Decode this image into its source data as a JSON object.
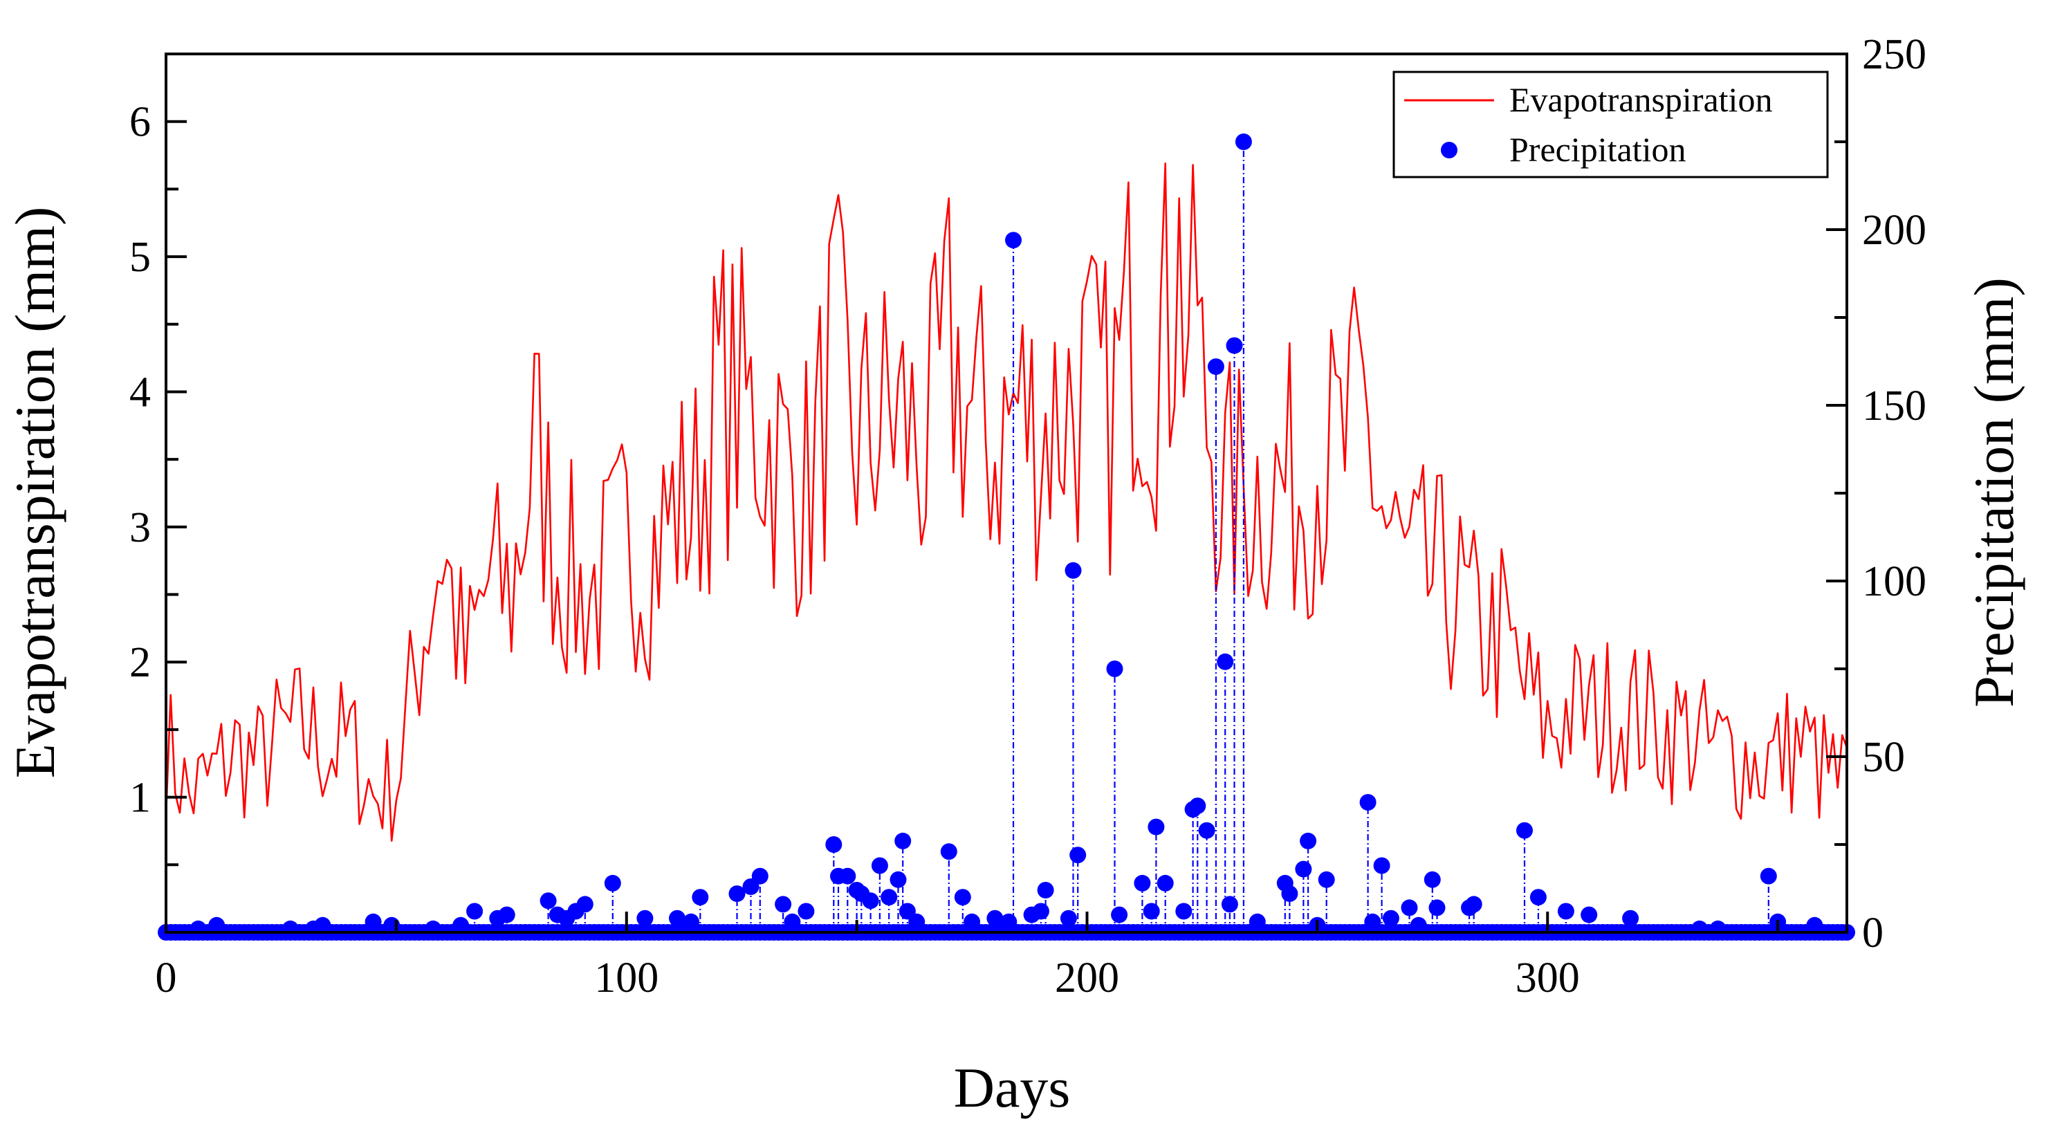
{
  "chart_data": {
    "type": "line+scatter",
    "title": "",
    "xlabel": "Days",
    "ylabel_left": "Evapotranspiration (mm)",
    "ylabel_right": "Precipitation (mm)",
    "xlim": [
      0,
      365
    ],
    "ylim_left": [
      0,
      6.5
    ],
    "ylim_right": [
      0,
      250
    ],
    "xticks": [
      "0",
      "100",
      "200",
      "300"
    ],
    "xtick_values": [
      0,
      100,
      200,
      300
    ],
    "yticks_left": [
      "1",
      "2",
      "3",
      "4",
      "5",
      "6"
    ],
    "ytick_left_values": [
      1,
      2,
      3,
      4,
      5,
      6
    ],
    "yticks_right": [
      "0",
      "50",
      "100",
      "150",
      "200",
      "250"
    ],
    "ytick_right_values": [
      0,
      50,
      100,
      150,
      200,
      250
    ],
    "grid": false,
    "legend_position": "top-right",
    "colors": {
      "et": "#ff0000",
      "precip": "#0000ff",
      "axes": "#000000"
    },
    "series": [
      {
        "name": "Evapotranspiration",
        "axis": "left",
        "style": "line",
        "knots": [
          [
            0,
            1.4
          ],
          [
            5,
            1.0
          ],
          [
            10,
            1.15
          ],
          [
            15,
            1.35
          ],
          [
            20,
            1.25
          ],
          [
            25,
            1.45
          ],
          [
            30,
            1.5
          ],
          [
            35,
            1.35
          ],
          [
            40,
            1.4
          ],
          [
            45,
            1.0
          ],
          [
            50,
            1.1
          ],
          [
            55,
            2.1
          ],
          [
            60,
            2.9
          ],
          [
            65,
            1.9
          ],
          [
            70,
            2.6
          ],
          [
            75,
            2.5
          ],
          [
            80,
            3.6
          ],
          [
            85,
            2.8
          ],
          [
            90,
            2.5
          ],
          [
            95,
            2.6
          ],
          [
            100,
            2.9
          ],
          [
            105,
            2.8
          ],
          [
            110,
            3.1
          ],
          [
            115,
            3.2
          ],
          [
            120,
            4.0
          ],
          [
            125,
            3.9
          ],
          [
            130,
            3.7
          ],
          [
            135,
            3.4
          ],
          [
            140,
            3.3
          ],
          [
            145,
            4.3
          ],
          [
            150,
            3.6
          ],
          [
            155,
            3.8
          ],
          [
            160,
            3.8
          ],
          [
            165,
            3.5
          ],
          [
            170,
            4.3
          ],
          [
            175,
            3.8
          ],
          [
            180,
            3.6
          ],
          [
            185,
            3.9
          ],
          [
            190,
            3.7
          ],
          [
            195,
            3.9
          ],
          [
            200,
            4.0
          ],
          [
            205,
            3.8
          ],
          [
            210,
            4.6
          ],
          [
            215,
            4.3
          ],
          [
            220,
            4.9
          ],
          [
            225,
            4.0
          ],
          [
            230,
            3.2
          ],
          [
            235,
            3.3
          ],
          [
            240,
            3.3
          ],
          [
            245,
            3.3
          ],
          [
            250,
            3.5
          ],
          [
            255,
            3.5
          ],
          [
            260,
            3.8
          ],
          [
            265,
            3.0
          ],
          [
            270,
            2.6
          ],
          [
            275,
            2.6
          ],
          [
            280,
            2.5
          ],
          [
            285,
            2.2
          ],
          [
            290,
            2.2
          ],
          [
            295,
            1.8
          ],
          [
            300,
            1.5
          ],
          [
            305,
            1.65
          ],
          [
            310,
            1.6
          ],
          [
            315,
            1.65
          ],
          [
            320,
            1.6
          ],
          [
            325,
            1.5
          ],
          [
            330,
            1.5
          ],
          [
            335,
            1.35
          ],
          [
            340,
            1.35
          ],
          [
            345,
            1.25
          ],
          [
            350,
            1.3
          ],
          [
            355,
            1.4
          ],
          [
            360,
            1.2
          ],
          [
            365,
            1.1
          ]
        ],
        "seed": 7
      },
      {
        "name": "Precipitation",
        "axis": "right",
        "style": "stem-scatter",
        "points": [
          [
            7,
            1
          ],
          [
            11,
            2
          ],
          [
            27,
            1
          ],
          [
            32,
            1
          ],
          [
            34,
            2
          ],
          [
            45,
            3
          ],
          [
            49,
            2
          ],
          [
            58,
            1
          ],
          [
            64,
            2
          ],
          [
            67,
            6
          ],
          [
            72,
            4
          ],
          [
            74,
            5
          ],
          [
            83,
            9
          ],
          [
            85,
            5
          ],
          [
            87,
            4
          ],
          [
            89,
            6
          ],
          [
            91,
            8
          ],
          [
            97,
            14
          ],
          [
            104,
            4
          ],
          [
            111,
            4
          ],
          [
            114,
            3
          ],
          [
            116,
            10
          ],
          [
            124,
            11
          ],
          [
            127,
            13
          ],
          [
            129,
            16
          ],
          [
            134,
            8
          ],
          [
            136,
            3
          ],
          [
            139,
            6
          ],
          [
            145,
            25
          ],
          [
            146,
            16
          ],
          [
            148,
            16
          ],
          [
            150,
            12
          ],
          [
            151,
            11
          ],
          [
            153,
            9
          ],
          [
            155,
            19
          ],
          [
            157,
            10
          ],
          [
            159,
            15
          ],
          [
            160,
            26
          ],
          [
            161,
            6
          ],
          [
            163,
            3
          ],
          [
            170,
            23
          ],
          [
            173,
            10
          ],
          [
            175,
            3
          ],
          [
            180,
            4
          ],
          [
            183,
            3
          ],
          [
            184,
            197
          ],
          [
            188,
            5
          ],
          [
            190,
            6
          ],
          [
            191,
            12
          ],
          [
            196,
            4
          ],
          [
            197,
            103
          ],
          [
            198,
            22
          ],
          [
            206,
            75
          ],
          [
            207,
            5
          ],
          [
            212,
            14
          ],
          [
            214,
            6
          ],
          [
            215,
            30
          ],
          [
            217,
            14
          ],
          [
            221,
            6
          ],
          [
            223,
            35
          ],
          [
            224,
            36
          ],
          [
            226,
            29
          ],
          [
            228,
            161
          ],
          [
            230,
            77
          ],
          [
            231,
            8
          ],
          [
            232,
            167
          ],
          [
            234,
            225
          ],
          [
            237,
            3
          ],
          [
            243,
            14
          ],
          [
            244,
            11
          ],
          [
            247,
            18
          ],
          [
            248,
            26
          ],
          [
            250,
            2
          ],
          [
            252,
            15
          ],
          [
            261,
            37
          ],
          [
            262,
            3
          ],
          [
            264,
            19
          ],
          [
            266,
            4
          ],
          [
            270,
            7
          ],
          [
            272,
            2
          ],
          [
            275,
            15
          ],
          [
            276,
            7
          ],
          [
            283,
            7
          ],
          [
            284,
            8
          ],
          [
            295,
            29
          ],
          [
            298,
            10
          ],
          [
            304,
            6
          ],
          [
            309,
            5
          ],
          [
            318,
            4
          ],
          [
            333,
            1
          ],
          [
            337,
            1
          ],
          [
            348,
            16
          ],
          [
            350,
            3
          ],
          [
            358,
            2
          ]
        ]
      }
    ]
  }
}
